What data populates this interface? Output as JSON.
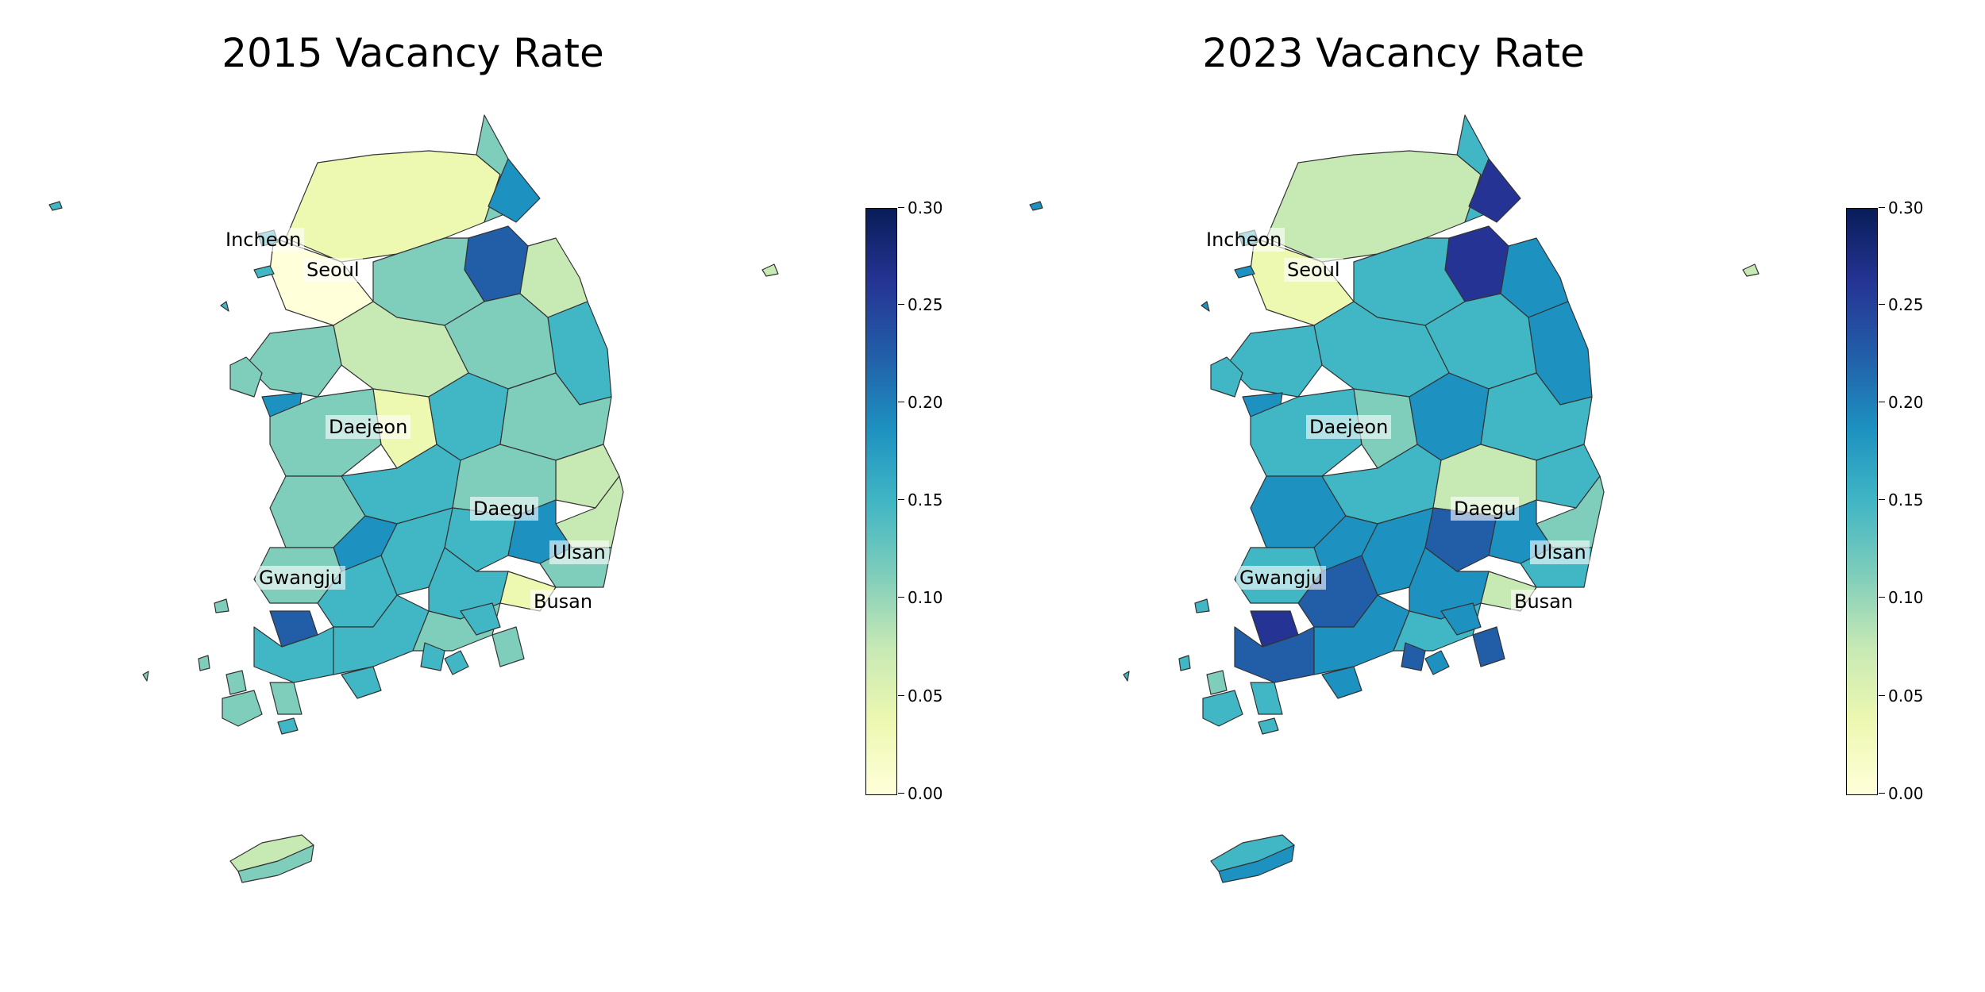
{
  "panels": [
    {
      "title": "2015 Vacancy Rate",
      "colorbar_ticks": [
        "0.00",
        "0.05",
        "0.10",
        "0.15",
        "0.20",
        "0.25",
        "0.30"
      ]
    },
    {
      "title": "2023 Vacancy Rate",
      "colorbar_ticks": [
        "0.00",
        "0.05",
        "0.10",
        "0.15",
        "0.20",
        "0.25",
        "0.30"
      ]
    }
  ],
  "cities": {
    "incheon": "Incheon",
    "seoul": "Seoul",
    "daejeon": "Daejeon",
    "daegu": "Daegu",
    "ulsan": "Ulsan",
    "gwangju": "Gwangju",
    "busan": "Busan"
  },
  "colormap": {
    "name": "YlGnBu",
    "vmin": 0.0,
    "vmax": 0.3,
    "stops": [
      "#ffffd9",
      "#edf8b1",
      "#c7e9b4",
      "#7fcdbb",
      "#41b6c4",
      "#1d91c0",
      "#225ea8",
      "#253494",
      "#081d58"
    ]
  }
}
